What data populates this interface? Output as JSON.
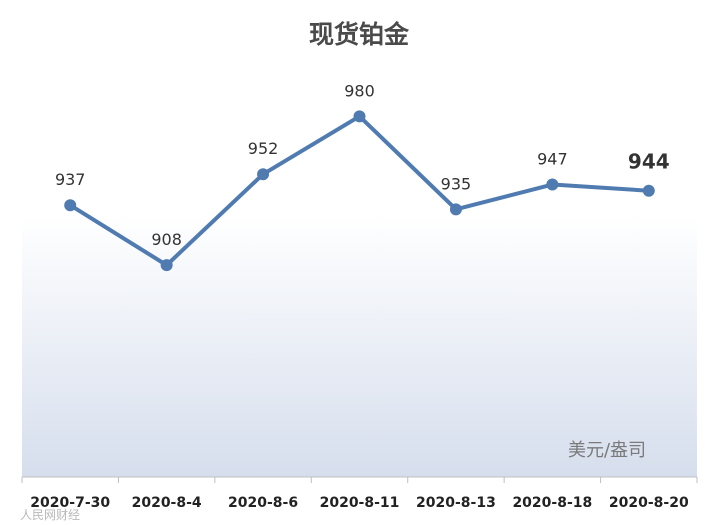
{
  "chart_data": {
    "type": "line",
    "title": "现货铂金",
    "unit_label": "美元/盎司",
    "categories": [
      "2020-7-30",
      "2020-8-4",
      "2020-8-6",
      "2020-8-11",
      "2020-8-13",
      "2020-8-18",
      "2020-8-20"
    ],
    "series": [
      {
        "values": [
          937,
          908,
          952,
          980,
          935,
          947,
          944
        ]
      }
    ],
    "data_labels": [
      "937",
      "908",
      "952",
      "980",
      "935",
      "947",
      "944"
    ],
    "ylim": [
      850,
      1000
    ],
    "grid": false,
    "legend": "none",
    "colors": {
      "line": "#4f7bb0",
      "background_gradient_top": "#ffffff",
      "background_gradient_bottom": "#d6deed"
    }
  },
  "watermark": "人民网财经"
}
